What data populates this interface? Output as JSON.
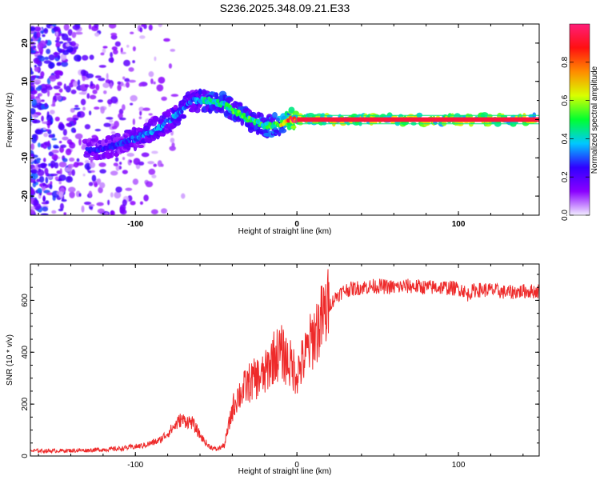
{
  "figure_title": "S236.2025.348.09.21.E33",
  "chart_data": [
    {
      "type": "heatmap",
      "title": "S236.2025.348.09.21.E33",
      "xlabel": "Height of straight line (km)",
      "ylabel": "Frequency (Hz)",
      "xlim": [
        -165,
        150
      ],
      "ylim": [
        -25,
        25
      ],
      "x_ticks": [
        -100,
        0,
        100
      ],
      "y_ticks": [
        -20,
        -10,
        0,
        10,
        20
      ],
      "colorbar": {
        "label": "Normalized spectral amplitude",
        "range": [
          0,
          1
        ],
        "ticks": [
          "0.0",
          "0.2",
          "0.4",
          "0.6",
          "0.8"
        ],
        "tick_values": [
          0.0,
          0.2,
          0.4,
          0.6,
          0.8
        ],
        "colormap": [
          "#f2eeff",
          "#8a00ff",
          "#3000ff",
          "#00c8ff",
          "#00ff30",
          "#d8ff00",
          "#ff8c00",
          "#ff1010",
          "#ff1e78"
        ]
      },
      "ridge": {
        "description": "dominant frequency track",
        "x": [
          -130,
          -115,
          -100,
          -85,
          -75,
          -65,
          -55,
          -45,
          -38,
          -30,
          -20,
          -15,
          -10,
          -5,
          0,
          20,
          40,
          60,
          80,
          100,
          120,
          148
        ],
        "y": [
          -8,
          -7,
          -5,
          -2,
          1,
          5,
          5,
          4,
          2,
          0,
          -1.5,
          -1.5,
          -1,
          0,
          0,
          0,
          0,
          0,
          0,
          0,
          0,
          0
        ],
        "amplitude": [
          0.25,
          0.25,
          0.3,
          0.35,
          0.35,
          0.3,
          0.45,
          0.45,
          0.5,
          0.5,
          0.5,
          0.5,
          0.6,
          0.85,
          0.95,
          0.95,
          0.95,
          0.95,
          0.95,
          0.95,
          0.95,
          0.95
        ]
      },
      "noise_region_x": [
        -165,
        -70
      ]
    },
    {
      "type": "line",
      "xlabel": "Height of straight line (km)",
      "ylabel": "SNR (10 * v/v)",
      "xlim": [
        -165,
        150
      ],
      "ylim": [
        0,
        740
      ],
      "x_ticks": [
        -100,
        0,
        100
      ],
      "y_ticks": [
        0,
        200,
        400,
        600
      ],
      "color": "#ee2a2a",
      "series": [
        {
          "name": "SNR",
          "x": [
            -165,
            -150,
            -130,
            -110,
            -95,
            -85,
            -78,
            -72,
            -65,
            -60,
            -55,
            -50,
            -45,
            -42,
            -40,
            -37,
            -35,
            -30,
            -25,
            -20,
            -15,
            -10,
            -5,
            0,
            5,
            10,
            15,
            20,
            25,
            30,
            40,
            50,
            60,
            70,
            80,
            90,
            100,
            103,
            105,
            110,
            120,
            130,
            140,
            150
          ],
          "y": [
            20,
            20,
            22,
            28,
            40,
            60,
            100,
            140,
            130,
            80,
            40,
            25,
            40,
            120,
            180,
            230,
            240,
            280,
            300,
            310,
            380,
            400,
            360,
            320,
            380,
            460,
            520,
            580,
            620,
            640,
            650,
            655,
            650,
            655,
            650,
            650,
            645,
            640,
            620,
            640,
            640,
            630,
            635,
            635
          ]
        }
      ]
    }
  ]
}
